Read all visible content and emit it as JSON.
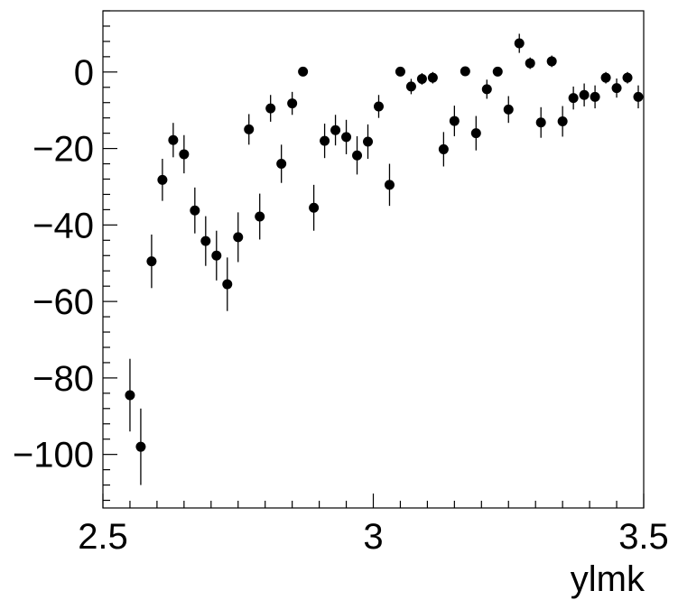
{
  "chart_data": {
    "type": "scatter",
    "title": "",
    "xlabel": "ylmk",
    "ylabel": "",
    "xlim": [
      2.5,
      3.5
    ],
    "ylim": [
      -114,
      16
    ],
    "grid": false,
    "legend": "none",
    "colors": {
      "marker": "#000000",
      "axis": "#000000",
      "background": "#ffffff"
    },
    "x_ticks": [
      {
        "value": 2.5,
        "label": "2.5"
      },
      {
        "value": 3.0,
        "label": "3"
      },
      {
        "value": 3.5,
        "label": "3.5"
      }
    ],
    "y_ticks": [
      {
        "value": 0,
        "label": "0"
      },
      {
        "value": -20,
        "label": "−20"
      },
      {
        "value": -40,
        "label": "−40"
      },
      {
        "value": -60,
        "label": "−60"
      },
      {
        "value": -80,
        "label": "−80"
      },
      {
        "value": -100,
        "label": "−100"
      }
    ],
    "series": [
      {
        "points": [
          {
            "x": 2.55,
            "y": -84.5,
            "err": 9.5
          },
          {
            "x": 2.57,
            "y": -98.0,
            "err": 10.0
          },
          {
            "x": 2.59,
            "y": -49.5,
            "err": 7.0
          },
          {
            "x": 2.61,
            "y": -28.2,
            "err": 5.5
          },
          {
            "x": 2.63,
            "y": -17.8,
            "err": 4.5
          },
          {
            "x": 2.65,
            "y": -21.5,
            "err": 5.0
          },
          {
            "x": 2.67,
            "y": -36.2,
            "err": 6.0
          },
          {
            "x": 2.69,
            "y": -44.2,
            "err": 6.5
          },
          {
            "x": 2.71,
            "y": -48.0,
            "err": 6.5
          },
          {
            "x": 2.73,
            "y": -55.5,
            "err": 7.0
          },
          {
            "x": 2.75,
            "y": -43.2,
            "err": 6.5
          },
          {
            "x": 2.77,
            "y": -15.0,
            "err": 4.0
          },
          {
            "x": 2.79,
            "y": -37.8,
            "err": 6.0
          },
          {
            "x": 2.81,
            "y": -9.5,
            "err": 3.5
          },
          {
            "x": 2.83,
            "y": -24.0,
            "err": 5.0
          },
          {
            "x": 2.85,
            "y": -8.2,
            "err": 3.0
          },
          {
            "x": 2.87,
            "y": 0.1,
            "err": 1.0
          },
          {
            "x": 2.89,
            "y": -35.5,
            "err": 6.0
          },
          {
            "x": 2.91,
            "y": -18.0,
            "err": 4.5
          },
          {
            "x": 2.93,
            "y": -15.2,
            "err": 4.0
          },
          {
            "x": 2.95,
            "y": -17.0,
            "err": 4.5
          },
          {
            "x": 2.97,
            "y": -21.8,
            "err": 5.0
          },
          {
            "x": 2.99,
            "y": -18.2,
            "err": 4.5
          },
          {
            "x": 3.01,
            "y": -9.0,
            "err": 3.0
          },
          {
            "x": 3.03,
            "y": -29.5,
            "err": 5.5
          },
          {
            "x": 3.05,
            "y": 0.1,
            "err": 1.0
          },
          {
            "x": 3.07,
            "y": -3.8,
            "err": 2.0
          },
          {
            "x": 3.09,
            "y": -1.8,
            "err": 1.5
          },
          {
            "x": 3.11,
            "y": -1.5,
            "err": 1.5
          },
          {
            "x": 3.13,
            "y": -20.2,
            "err": 4.5
          },
          {
            "x": 3.15,
            "y": -12.8,
            "err": 4.0
          },
          {
            "x": 3.17,
            "y": 0.2,
            "err": 1.0
          },
          {
            "x": 3.19,
            "y": -16.0,
            "err": 4.5
          },
          {
            "x": 3.21,
            "y": -4.5,
            "err": 2.5
          },
          {
            "x": 3.23,
            "y": 0.1,
            "err": 1.0
          },
          {
            "x": 3.25,
            "y": -9.8,
            "err": 3.5
          },
          {
            "x": 3.27,
            "y": 7.5,
            "err": 2.5
          },
          {
            "x": 3.29,
            "y": 2.3,
            "err": 1.5
          },
          {
            "x": 3.31,
            "y": -13.2,
            "err": 4.0
          },
          {
            "x": 3.33,
            "y": 2.8,
            "err": 1.5
          },
          {
            "x": 3.35,
            "y": -12.9,
            "err": 4.0
          },
          {
            "x": 3.37,
            "y": -6.8,
            "err": 3.0
          },
          {
            "x": 3.39,
            "y": -6.0,
            "err": 3.0
          },
          {
            "x": 3.41,
            "y": -6.5,
            "err": 3.0
          },
          {
            "x": 3.43,
            "y": -1.5,
            "err": 1.5
          },
          {
            "x": 3.45,
            "y": -4.2,
            "err": 2.5
          },
          {
            "x": 3.47,
            "y": -1.5,
            "err": 1.5
          },
          {
            "x": 3.49,
            "y": -6.5,
            "err": 3.0
          }
        ]
      }
    ]
  }
}
